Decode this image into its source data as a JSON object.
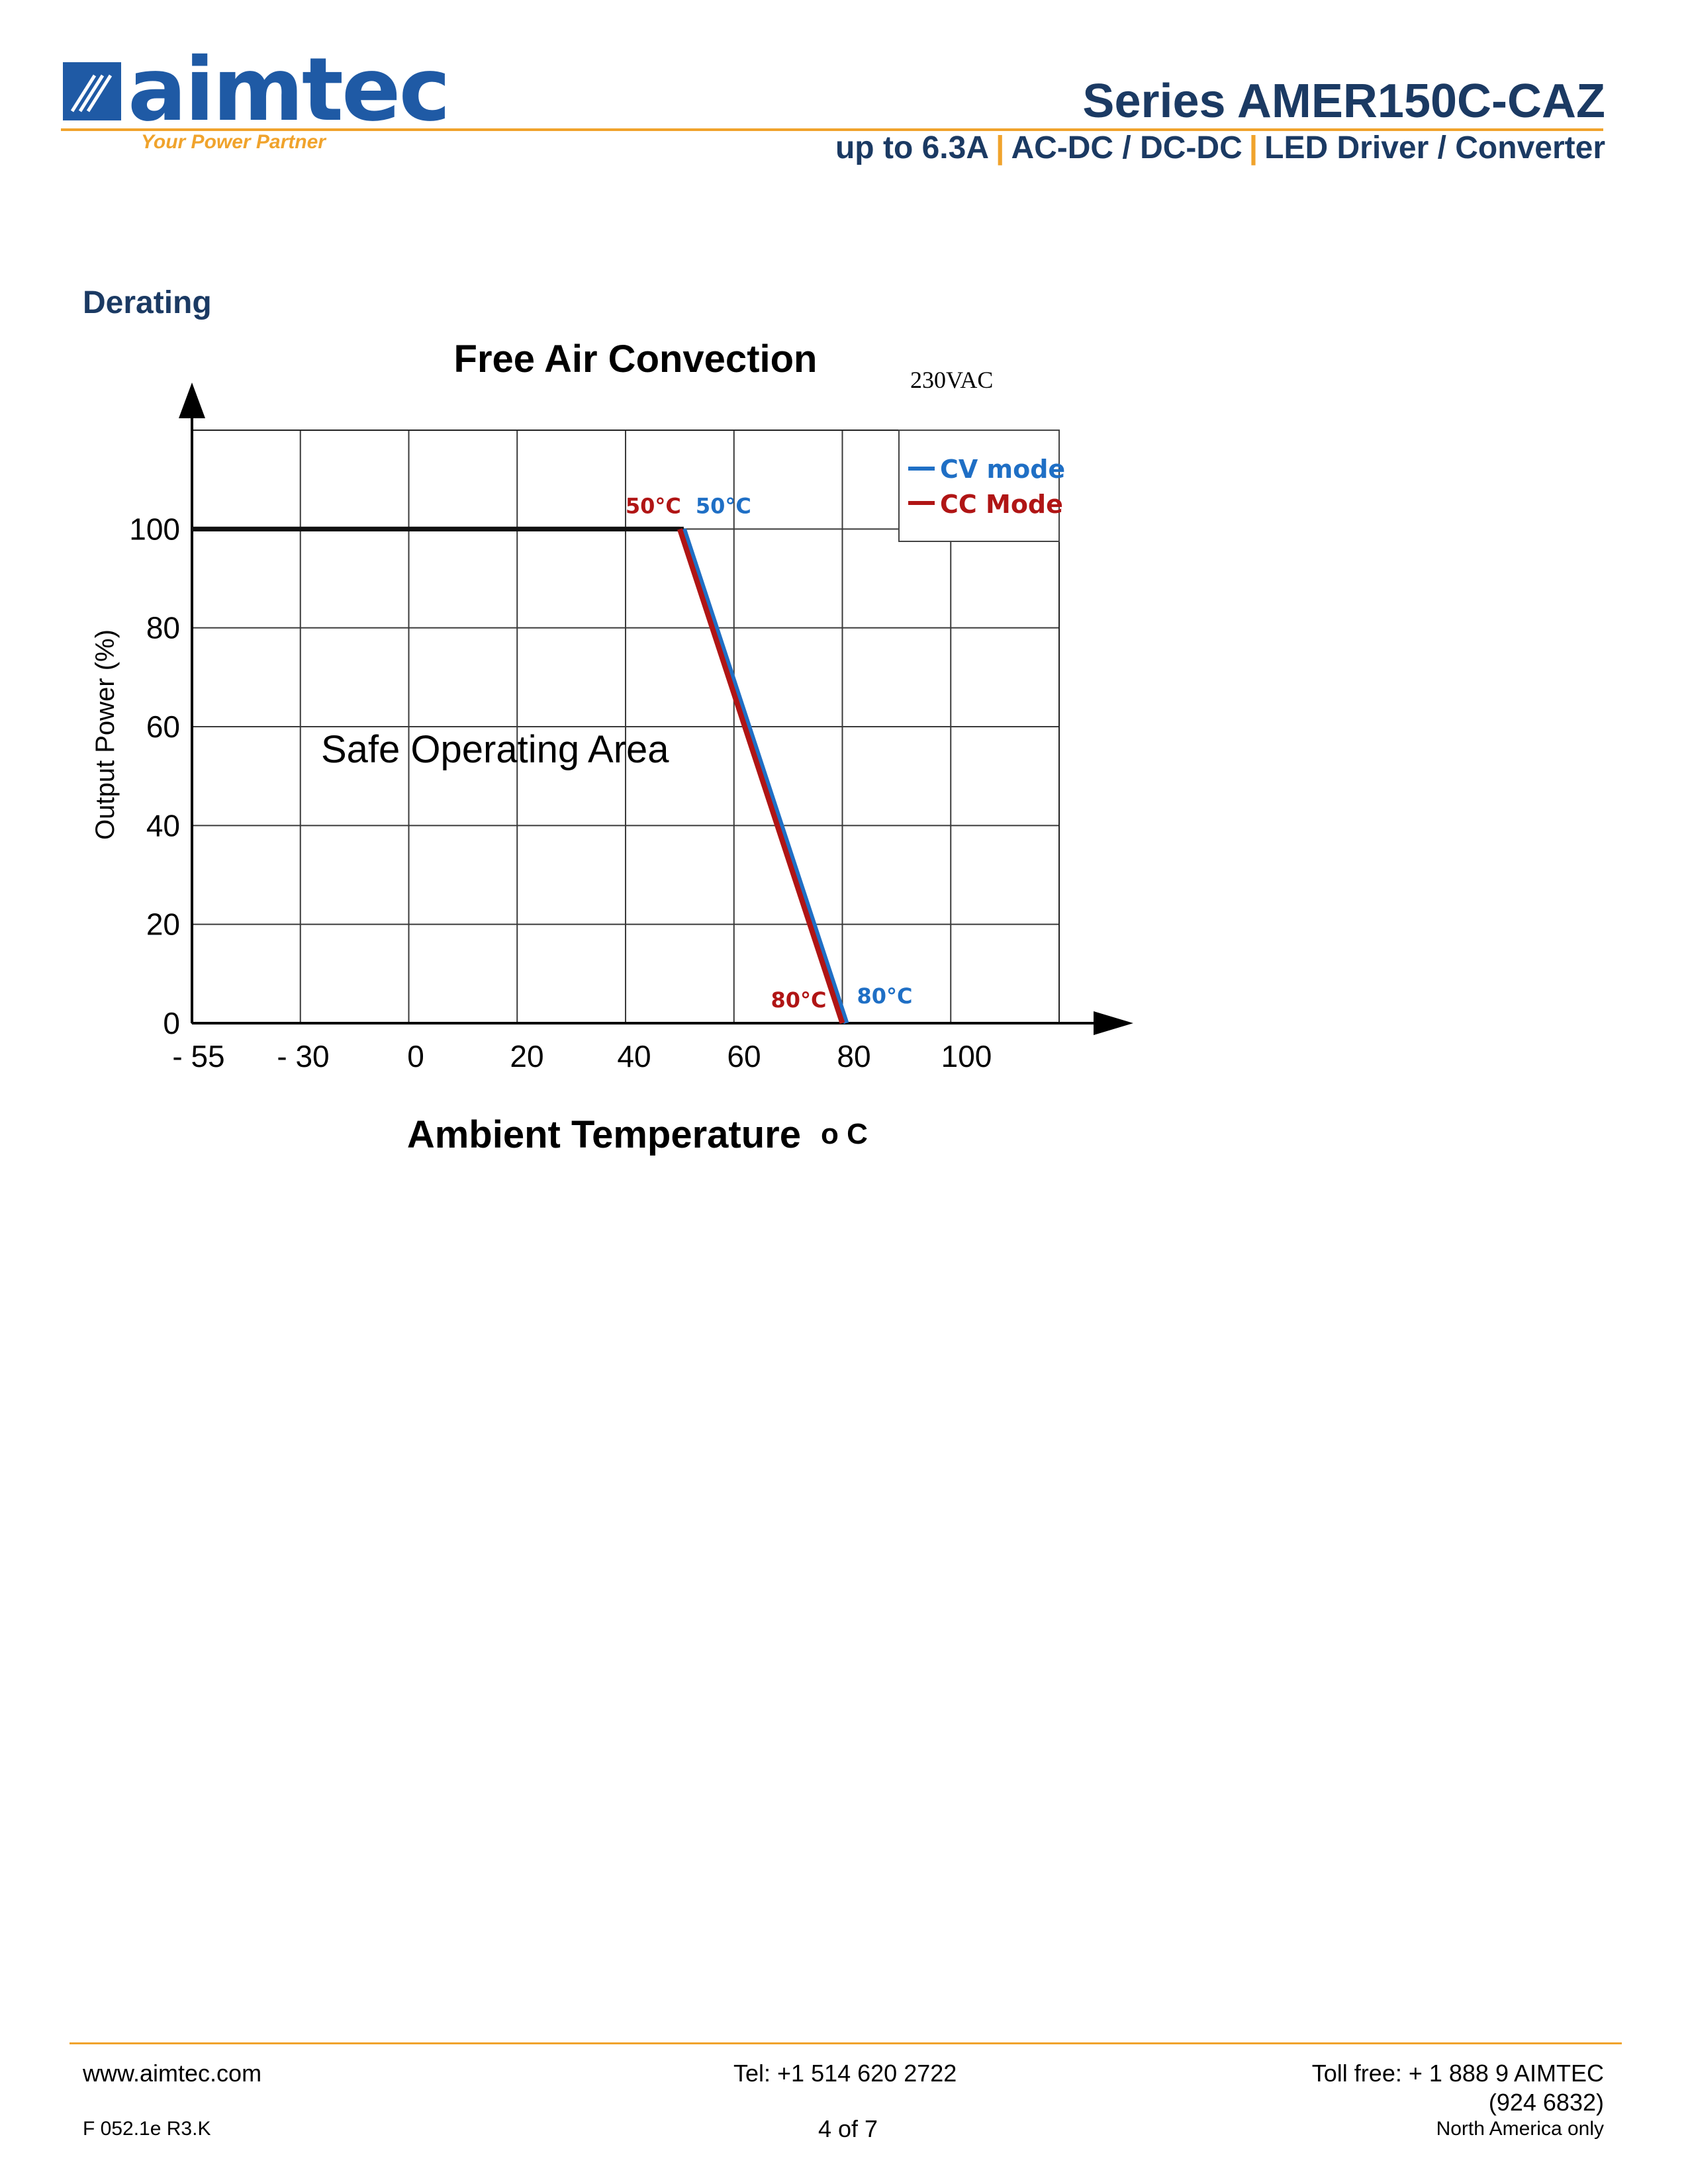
{
  "header": {
    "logo_text": "aimtec",
    "tagline": "Your Power Partner",
    "series_title": "Series AMER150C-CAZ",
    "subtitle_parts": [
      "up to 6.3A",
      "AC-DC / DC-DC",
      "LED Driver / Converter"
    ],
    "separator": "|",
    "colors": {
      "brand_blue": "#1f5aa5",
      "title_navy": "#1b3a63",
      "accent_orange": "#f0a32c"
    }
  },
  "section": {
    "heading": "Derating"
  },
  "chart_data": {
    "type": "line",
    "title": "Free Air Convection",
    "condition_label": "230VAC",
    "xlabel": "Ambient Temperature",
    "xlabel_unit": "o C",
    "ylabel": "Output Power (%)",
    "x_ticks": [
      "- 55",
      "- 30",
      "0",
      "20",
      "40",
      "60",
      "80",
      "100"
    ],
    "y_ticks": [
      "0",
      "20",
      "40",
      "60",
      "80",
      "100"
    ],
    "xlim": [
      -55,
      120
    ],
    "ylim": [
      0,
      120
    ],
    "grid": true,
    "legend_position": "top-right",
    "region_label": "Safe Operating Area",
    "series": [
      {
        "name": "CV mode",
        "color": "#1f6fc5",
        "x": [
          -55,
          50,
          80
        ],
        "y": [
          100,
          100,
          0
        ]
      },
      {
        "name": "CC Mode",
        "color": "#b01515",
        "x": [
          -55,
          50,
          80
        ],
        "y": [
          100,
          100,
          0
        ]
      }
    ],
    "annotations": [
      {
        "text": "50°C",
        "series": "CC Mode",
        "color": "#b01515"
      },
      {
        "text": "50°C",
        "series": "CV mode",
        "color": "#1f6fc5"
      },
      {
        "text": "80°C",
        "series": "CC Mode",
        "color": "#b01515"
      },
      {
        "text": "80°C",
        "series": "CV mode",
        "color": "#1f6fc5"
      }
    ]
  },
  "footer": {
    "website": "www.aimtec.com",
    "tel": "Tel: +1 514 620 2722",
    "toll_free": "Toll free: + 1 888 9 AIMTEC",
    "toll_free_number": "(924 6832)",
    "form_code": "F 052.1e R3.K",
    "page": "4 of 7",
    "region": "North America only"
  }
}
